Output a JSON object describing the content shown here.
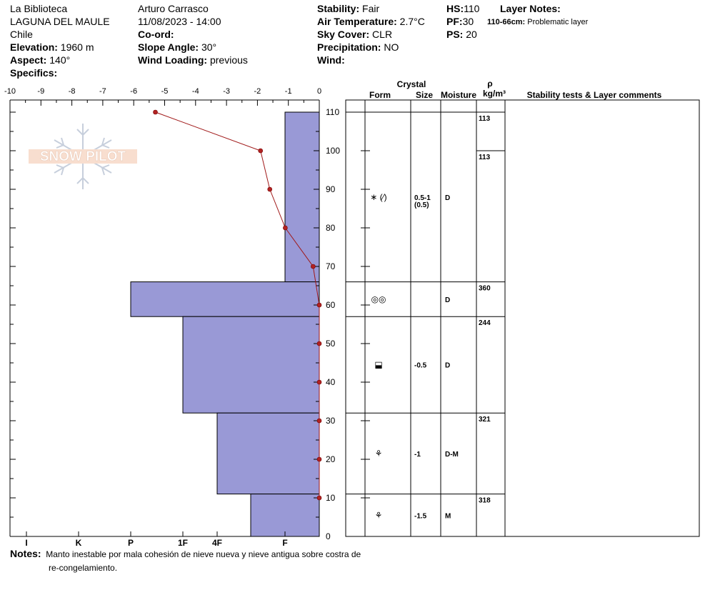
{
  "header": {
    "location_name": "La Biblioteca",
    "area": "LAGUNA DEL MAULE",
    "country": "Chile",
    "elevation_label": "Elevation:",
    "elevation_value": "1960 m",
    "aspect_label": "Aspect:",
    "aspect_value": "140°",
    "specifics_label": "Specifics:",
    "observer": "Arturo Carrasco",
    "datetime": "11/08/2023 - 14:00",
    "coord_label": "Co-ord:",
    "slope_label": "Slope Angle:",
    "slope_value": "30°",
    "wind_loading_label": "Wind Loading:",
    "wind_loading_value": "previous",
    "stability_label": "Stability:",
    "stability_value": "Fair",
    "air_temp_label": "Air Temperature:",
    "air_temp_value": "2.7°C",
    "sky_label": "Sky Cover:",
    "sky_value": "CLR",
    "precip_label": "Precipitation:",
    "precip_value": "NO",
    "wind_label": "Wind:",
    "hs_label": "HS:",
    "hs_value": "110",
    "pf_label": "PF:",
    "pf_value": "30",
    "ps_label": "PS:",
    "ps_value": "20",
    "layer_notes_label": "Layer Notes:",
    "layer_note_range": "110-66cm:",
    "layer_note_text": "Problematic layer"
  },
  "logo_text": "SNOW PILOT",
  "table_headers": {
    "crystal": "Crystal",
    "form": "Form",
    "size": "Size",
    "moisture": "Moisture",
    "rho": "ρ",
    "density_unit": "kg/m³",
    "comments": "Stability tests & Layer comments"
  },
  "notes": {
    "label": "Notes:",
    "line1": "Manto inestable por mala cohesión de nieve nueva y nieve antigua sobre costra de",
    "line2": "re-congelamiento."
  },
  "colors": {
    "hardness_fill": "#9999d6",
    "temp_line": "#a01818",
    "temp_marker": "#b22222"
  },
  "chart_data": {
    "type": "snow_profile",
    "temperature_axis": {
      "range": [
        -10,
        0
      ],
      "ticks": [
        "-10",
        "-9",
        "-8",
        "-7",
        "-6",
        "-5",
        "-4",
        "-3",
        "-2",
        "-1",
        "0"
      ]
    },
    "height_axis": {
      "range": [
        0,
        110
      ],
      "ticks": [
        "0",
        "10",
        "20",
        "30",
        "40",
        "50",
        "60",
        "70",
        "80",
        "90",
        "100",
        "110"
      ]
    },
    "hardness_axis": {
      "ticks": [
        "I",
        "K",
        "P",
        "1F",
        "4F",
        "F"
      ]
    },
    "temperature_profile": [
      {
        "height": 110,
        "temp": -5.3
      },
      {
        "height": 100,
        "temp": -1.9
      },
      {
        "height": 90,
        "temp": -1.6
      },
      {
        "height": 80,
        "temp": -1.1
      },
      {
        "height": 70,
        "temp": -0.2
      },
      {
        "height": 60,
        "temp": 0
      },
      {
        "height": 50,
        "temp": 0
      },
      {
        "height": 40,
        "temp": 0
      },
      {
        "height": 30,
        "temp": 0
      },
      {
        "height": 20,
        "temp": 0
      },
      {
        "height": 10,
        "temp": 0
      }
    ],
    "layers": [
      {
        "top": 110,
        "bottom": 66,
        "hardness": "F",
        "form": "∗ (⁄)",
        "size": "0.5-1",
        "size2": "(0.5)",
        "moisture": "D",
        "density": [
          "113",
          "113"
        ]
      },
      {
        "top": 66,
        "bottom": 57,
        "hardness": "P",
        "form": "◎◎",
        "size": "",
        "size2": "",
        "moisture": "D",
        "density": [
          "360"
        ]
      },
      {
        "top": 57,
        "bottom": 32,
        "hardness": "1F",
        "form": "⬓",
        "size": "-0.5",
        "size2": "",
        "moisture": "D",
        "density": [
          "244"
        ]
      },
      {
        "top": 32,
        "bottom": 11,
        "hardness": "4F",
        "form": "⚘",
        "size": "-1",
        "size2": "",
        "moisture": "D-M",
        "density": [
          "321"
        ]
      },
      {
        "top": 11,
        "bottom": 0,
        "hardness": "4F-F",
        "form": "⚘",
        "size": "-1.5",
        "size2": "",
        "moisture": "M",
        "density": [
          "318"
        ]
      }
    ]
  }
}
